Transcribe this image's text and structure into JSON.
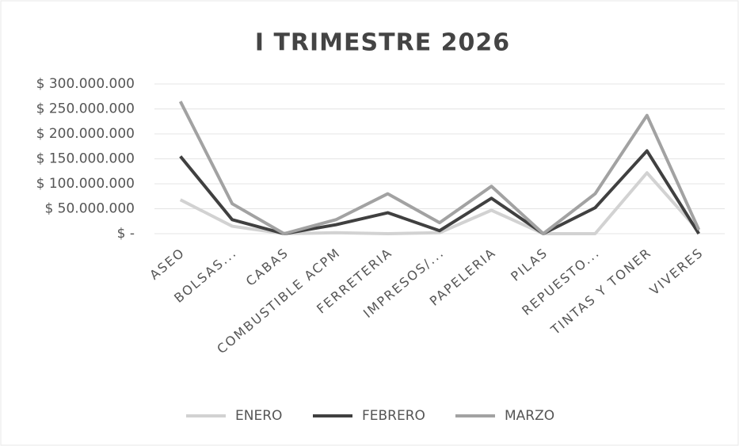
{
  "chart_data": {
    "type": "line",
    "title": "I TRIMESTRE  2026",
    "categories": [
      "ASEO",
      "BOLSAS...",
      "CABAS",
      "COMBUSTIBLE ACPM",
      "FERRETERIA",
      "IMPRESOS/...",
      "PAPELERIA",
      "PILAS",
      "REPUESTO...",
      "TINTAS Y TONER",
      "VIVERES"
    ],
    "series": [
      {
        "name": "ENERO",
        "color": "#d2d2d2",
        "values": [
          68000000,
          15000000,
          0,
          2000000,
          0,
          2000000,
          47000000,
          0,
          0,
          122000000,
          5000000
        ]
      },
      {
        "name": "FEBRERO",
        "color": "#404040",
        "values": [
          155000000,
          28000000,
          0,
          18000000,
          42000000,
          6000000,
          71000000,
          0,
          52000000,
          166000000,
          0
        ]
      },
      {
        "name": "MARZO",
        "color": "#a2a2a2",
        "values": [
          265000000,
          60000000,
          0,
          28000000,
          80000000,
          22000000,
          95000000,
          0,
          80000000,
          237000000,
          8000000
        ]
      }
    ],
    "ylim": [
      0,
      300000000
    ],
    "yticks": [
      {
        "value": 0,
        "label": "$ -"
      },
      {
        "value": 50000000,
        "label": "$ 50.000.000"
      },
      {
        "value": 100000000,
        "label": "$ 100.000.000"
      },
      {
        "value": 150000000,
        "label": "$ 150.000.000"
      },
      {
        "value": 200000000,
        "label": "$ 200.000.000"
      },
      {
        "value": 250000000,
        "label": "$ 250.000.000"
      },
      {
        "value": 300000000,
        "label": "$ 300.000.000"
      }
    ],
    "grid": true,
    "legend": "bottom"
  }
}
